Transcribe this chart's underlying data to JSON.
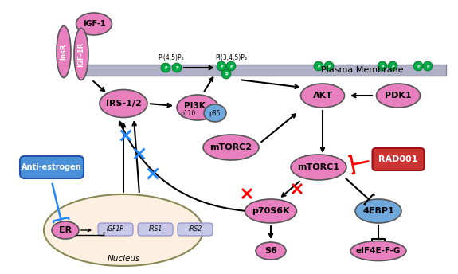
{
  "bg_color": "#ffffff",
  "membrane_color": "#b0b0c8",
  "pink_color": "#e87fbe",
  "pink_light": "#f0a0d0",
  "blue_color": "#6fa8dc",
  "blue_dark": "#4a7fc0",
  "green_circle": "#00aa44",
  "red_box": "#cc3333",
  "nucleus_fill": "#fdf0e0",
  "blue_btn": "#4a90d9",
  "gene_box": "#c8c8e8",
  "title": "Plasma Membrane",
  "pi45p2": "PI(4,5)P₂",
  "pi345p3": "PI(3,4,5)P₃"
}
